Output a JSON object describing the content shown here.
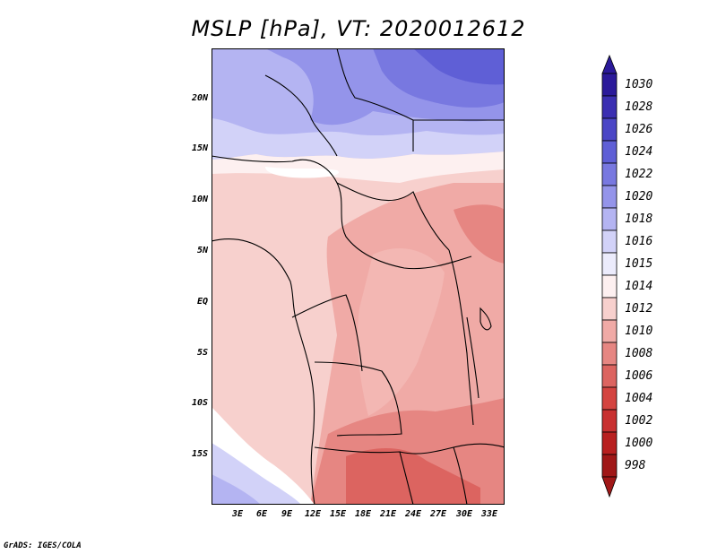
{
  "title": "MSLP [hPa], VT: 2020012612",
  "credit": "GrADS: IGES/COLA",
  "map": {
    "region": "Central/West Africa",
    "lat_ticks": [
      "20N",
      "15N",
      "10N",
      "5N",
      "EQ",
      "5S",
      "10S",
      "15S"
    ],
    "lon_ticks": [
      "3E",
      "6E",
      "9E",
      "12E",
      "15E",
      "18E",
      "21E",
      "24E",
      "27E",
      "30E",
      "33E"
    ]
  },
  "colorbar": {
    "levels": [
      "1030",
      "1028",
      "1026",
      "1024",
      "1022",
      "1020",
      "1018",
      "1016",
      "1015",
      "1014",
      "1012",
      "1010",
      "1008",
      "1006",
      "1004",
      "1002",
      "1000",
      "998"
    ],
    "colors": [
      "#2b1a9a",
      "#3b2fb2",
      "#4b46c6",
      "#5f5fd6",
      "#7878e0",
      "#9494ea",
      "#b4b4f2",
      "#d2d2f8",
      "#ececfc",
      "#fdf0f0",
      "#f7d0cd",
      "#f0aaa6",
      "#e68682",
      "#dc6460",
      "#d44440",
      "#c83030",
      "#b82020",
      "#a01818"
    ]
  }
}
